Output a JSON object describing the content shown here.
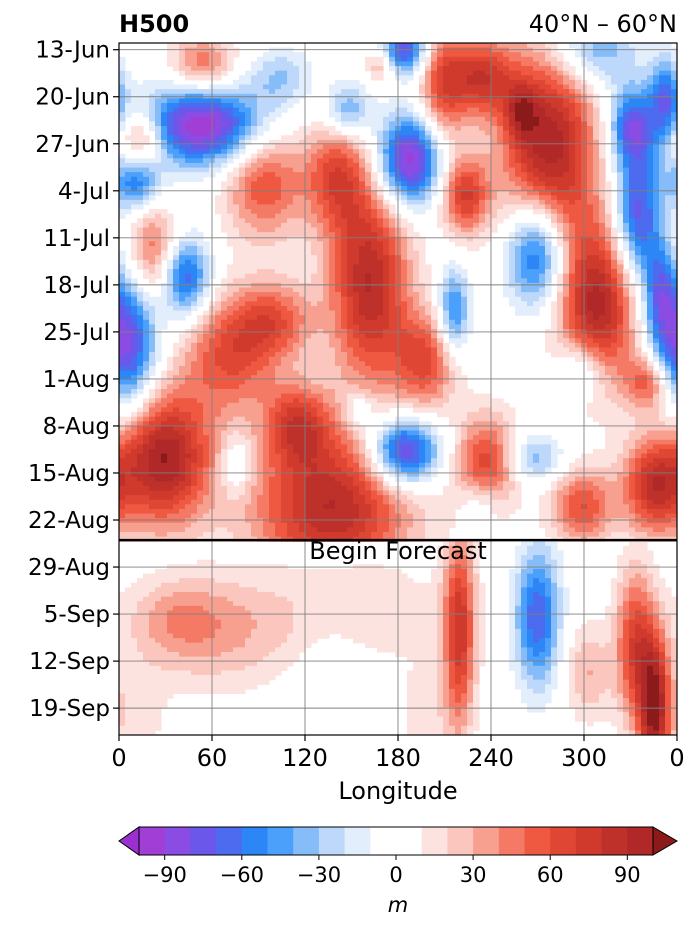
{
  "title_left": "H500",
  "title_right": "40°N – 60°N",
  "chart_data": {
    "type": "heatmap",
    "title": "H500",
    "subtitle": "40°N – 60°N",
    "xlabel": "Longitude",
    "ylabel": "",
    "x_ticks": [
      "0",
      "60",
      "120",
      "180",
      "240",
      "300",
      "0"
    ],
    "x_tick_values": [
      0,
      60,
      120,
      180,
      240,
      300,
      360
    ],
    "xlim": [
      0,
      360
    ],
    "y_ticks": [
      "13-Jun",
      "20-Jun",
      "27-Jun",
      "4-Jul",
      "11-Jul",
      "18-Jul",
      "25-Jul",
      "1-Aug",
      "8-Aug",
      "15-Aug",
      "22-Aug",
      "29-Aug",
      "5-Sep",
      "12-Sep",
      "19-Sep"
    ],
    "ylim": [
      "12-Jun",
      "23-Sep"
    ],
    "y_inverted": true,
    "grid": true,
    "annotation": {
      "text": "Begin Forecast",
      "date": "25-Aug"
    },
    "colorbar": {
      "label": "m",
      "orientation": "horizontal",
      "extend": "both",
      "tick_labels": [
        "−90",
        "−60",
        "−30",
        "0",
        "30",
        "60",
        "90"
      ],
      "tick_values": [
        -90,
        -60,
        -30,
        0,
        30,
        60,
        90
      ],
      "levels": [
        -100,
        -90,
        -80,
        -70,
        -60,
        -50,
        -40,
        -30,
        -20,
        -10,
        10,
        20,
        30,
        40,
        50,
        60,
        70,
        80,
        90,
        100
      ],
      "colors": [
        "#a13ed6",
        "#8a4ce3",
        "#6b58ea",
        "#4c6bee",
        "#2d86f5",
        "#4aa0fa",
        "#86bcf8",
        "#bdd8fa",
        "#e3eefd",
        "#ffffff",
        "#fde3e0",
        "#fbc6bd",
        "#f8a08f",
        "#f47a66",
        "#ef5841",
        "#e04634",
        "#cf3a2d",
        "#be302a",
        "#b02828"
      ],
      "under_color": "#9b30d0",
      "over_color": "#8b1a1a"
    }
  }
}
